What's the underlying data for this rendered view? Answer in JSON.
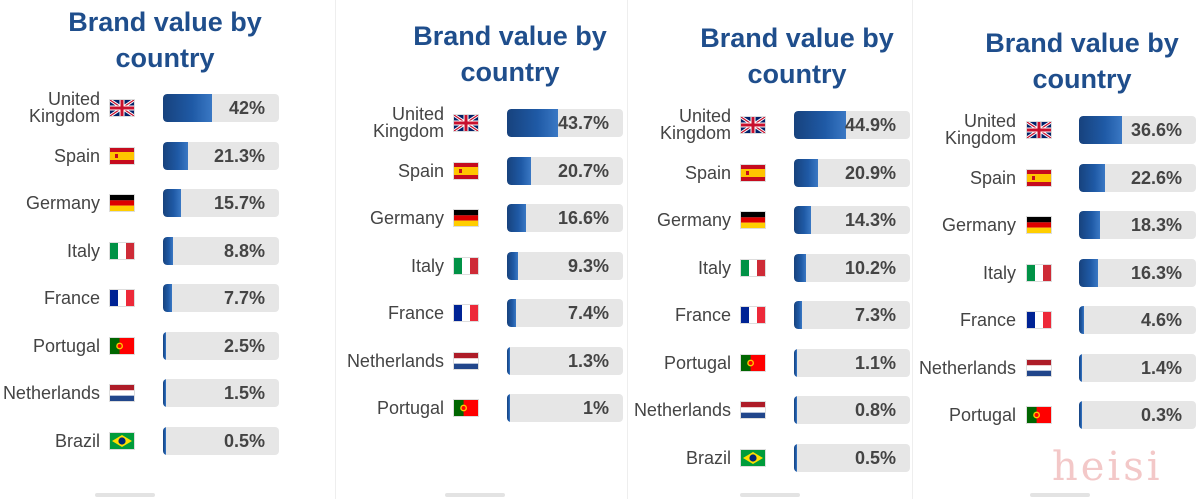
{
  "chart_data": [
    {
      "type": "bar",
      "title": "Brand value by country",
      "categories": [
        "United Kingdom",
        "Spain",
        "Germany",
        "Italy",
        "France",
        "Portugal",
        "Netherlands",
        "Brazil"
      ],
      "values": [
        42,
        21.3,
        15.7,
        8.8,
        7.7,
        2.5,
        1.5,
        0.5
      ],
      "labels": [
        "42%",
        "21.3%",
        "15.7%",
        "8.8%",
        "7.7%",
        "2.5%",
        "1.5%",
        "0.5%"
      ],
      "xlim": [
        0,
        100
      ]
    },
    {
      "type": "bar",
      "title": "Brand value by country",
      "categories": [
        "United Kingdom",
        "Spain",
        "Germany",
        "Italy",
        "France",
        "Netherlands",
        "Portugal"
      ],
      "values": [
        43.7,
        20.7,
        16.6,
        9.3,
        7.4,
        1.3,
        1
      ],
      "labels": [
        "43.7%",
        "20.7%",
        "16.6%",
        "9.3%",
        "7.4%",
        "1.3%",
        "1%"
      ],
      "xlim": [
        0,
        100
      ]
    },
    {
      "type": "bar",
      "title": "Brand value by country",
      "categories": [
        "United Kingdom",
        "Spain",
        "Germany",
        "Italy",
        "France",
        "Portugal",
        "Netherlands",
        "Brazil"
      ],
      "values": [
        44.9,
        20.9,
        14.3,
        10.2,
        7.3,
        1.1,
        0.8,
        0.5
      ],
      "labels": [
        "44.9%",
        "20.9%",
        "14.3%",
        "10.2%",
        "7.3%",
        "1.1%",
        "0.8%",
        "0.5%"
      ],
      "xlim": [
        0,
        100
      ]
    },
    {
      "type": "bar",
      "title": "Brand value by country",
      "categories": [
        "United Kingdom",
        "Spain",
        "Germany",
        "Italy",
        "France",
        "Netherlands",
        "Portugal"
      ],
      "values": [
        36.6,
        22.6,
        18.3,
        16.3,
        4.6,
        1.4,
        0.3
      ],
      "labels": [
        "36.6%",
        "22.6%",
        "18.3%",
        "16.3%",
        "4.6%",
        "1.4%",
        "0.3%"
      ],
      "xlim": [
        0,
        100
      ]
    }
  ],
  "watermark": "heisi",
  "colors": {
    "title": "#1f4e8c",
    "bar": "#1f5aa6",
    "track": "#e6e6e6",
    "text": "#444444"
  }
}
